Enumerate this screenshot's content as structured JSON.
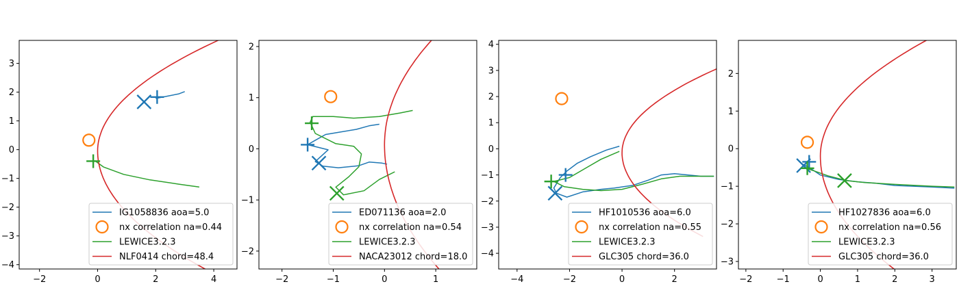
{
  "chart_data": [
    {
      "type": "line",
      "xlim": [
        -2.7,
        4.8
      ],
      "ylim": [
        -4.15,
        3.8
      ],
      "xticks": [
        -2,
        0,
        2,
        4
      ],
      "yticks": [
        -4,
        -3,
        -2,
        -1,
        0,
        1,
        2,
        3
      ],
      "legend_position": "lower-right",
      "series": [
        {
          "name": "IG1058836 aoa=5.0",
          "color": "#1f77b4",
          "x": [
            2.0,
            2.4,
            2.8,
            3.0
          ],
          "y": [
            1.78,
            1.86,
            1.94,
            2.02
          ]
        },
        {
          "name": "nx correlation na=0.44",
          "color": "#ff7f0e",
          "marker": "open-circle",
          "x": [
            -0.3
          ],
          "y": [
            0.33
          ]
        },
        {
          "name": "LEWICE3.2.3",
          "color": "#2ca02c",
          "x": [
            -0.1,
            0.2,
            0.9,
            1.8,
            2.8,
            3.5
          ],
          "y": [
            -0.38,
            -0.6,
            -0.86,
            -1.05,
            -1.2,
            -1.3
          ]
        },
        {
          "name": "NLF0414 chord=48.4",
          "color": "#d62728",
          "curve": "leading-edge",
          "x_le": 0.0,
          "y_le": -0.05,
          "a": 0.28,
          "b": 0.22,
          "x_end": 4.8
        }
      ],
      "markers": [
        {
          "series": "IG1058836 aoa=5.0",
          "shape": "plus",
          "x": 2.05,
          "y": 1.83
        },
        {
          "series": "IG1058836 aoa=5.0",
          "shape": "x",
          "x": 1.6,
          "y": 1.66
        },
        {
          "series": "LEWICE3.2.3",
          "shape": "plus",
          "x": -0.15,
          "y": -0.4
        }
      ]
    },
    {
      "type": "line",
      "xlim": [
        -2.45,
        1.8
      ],
      "ylim": [
        -2.35,
        2.12
      ],
      "xticks": [
        -2,
        -1,
        0,
        1
      ],
      "yticks": [
        -2,
        -1,
        0,
        1,
        2
      ],
      "legend_position": "lower-right",
      "series": [
        {
          "name": "ED071136 aoa=2.0",
          "color": "#1f77b4",
          "x": [
            -0.1,
            -0.3,
            -0.55,
            -0.85,
            -1.15,
            -1.38,
            -1.5,
            -1.1,
            -1.35,
            -1.2,
            -0.9,
            -0.5,
            -0.3,
            -0.05,
            0.05
          ],
          "y": [
            0.48,
            0.45,
            0.38,
            0.33,
            0.28,
            0.15,
            0.08,
            -0.02,
            -0.25,
            -0.34,
            -0.37,
            -0.33,
            -0.26,
            -0.28,
            -0.3
          ]
        },
        {
          "name": "nx correlation na=0.54",
          "color": "#ff7f0e",
          "marker": "open-circle",
          "x": [
            -1.05
          ],
          "y": [
            1.02
          ]
        },
        {
          "name": "LEWICE3.2.3",
          "color": "#2ca02c",
          "x": [
            0.55,
            0.3,
            -0.1,
            -0.6,
            -1.0,
            -1.4,
            -1.45,
            -1.35,
            -0.95,
            -0.6,
            -0.45,
            -0.5,
            -0.7,
            -0.95,
            -0.8,
            -0.4,
            -0.1,
            0.2
          ],
          "y": [
            0.75,
            0.7,
            0.63,
            0.6,
            0.63,
            0.63,
            0.52,
            0.3,
            0.1,
            0.05,
            -0.1,
            -0.35,
            -0.55,
            -0.75,
            -0.9,
            -0.82,
            -0.6,
            -0.45
          ]
        },
        {
          "name": "NACA23012 chord=18.0",
          "color": "#d62728",
          "curve": "leading-edge",
          "x_le": 0.0,
          "y_le": 0.08,
          "a": 0.22,
          "b": 0.18,
          "x_end": 1.8
        }
      ],
      "markers": [
        {
          "series": "ED071136 aoa=2.0",
          "shape": "plus",
          "x": -1.5,
          "y": 0.08
        },
        {
          "series": "ED071136 aoa=2.0",
          "shape": "x",
          "x": -1.28,
          "y": -0.28
        },
        {
          "series": "LEWICE3.2.3",
          "shape": "plus",
          "x": -1.42,
          "y": 0.5
        },
        {
          "series": "LEWICE3.2.3",
          "shape": "x",
          "x": -0.93,
          "y": -0.87
        }
      ]
    },
    {
      "type": "line",
      "xlim": [
        -4.7,
        3.6
      ],
      "ylim": [
        -4.6,
        4.15
      ],
      "xticks": [
        -4,
        -2,
        0,
        2
      ],
      "yticks": [
        -4,
        -3,
        -2,
        -1,
        0,
        1,
        2,
        3,
        4
      ],
      "legend_position": "lower-right",
      "series": [
        {
          "name": "HF1010536 aoa=6.0",
          "color": "#1f77b4",
          "x": [
            -0.1,
            -0.6,
            -1.2,
            -1.7,
            -2.1,
            -2.35,
            -2.6,
            -2.5,
            -2.1,
            -1.5,
            -0.8,
            -0.3,
            0.4,
            1.0,
            1.5,
            2.0,
            3.0,
            3.5
          ],
          "y": [
            0.1,
            -0.05,
            -0.3,
            -0.55,
            -0.85,
            -1.1,
            -1.5,
            -1.7,
            -1.85,
            -1.65,
            -1.55,
            -1.5,
            -1.4,
            -1.2,
            -1.0,
            -0.95,
            -1.05,
            -1.05
          ]
        },
        {
          "name": "nx correlation na=0.55",
          "color": "#ff7f0e",
          "marker": "open-circle",
          "x": [
            -2.3
          ],
          "y": [
            1.92
          ]
        },
        {
          "name": "LEWICE3.2.3",
          "color": "#2ca02c",
          "x": [
            -0.1,
            -0.8,
            -1.4,
            -2.0,
            -2.6,
            -2.2,
            -1.5,
            -0.8,
            0.0,
            0.8,
            1.5,
            2.2,
            3.0,
            3.5
          ],
          "y": [
            -0.1,
            -0.4,
            -0.75,
            -1.1,
            -1.25,
            -1.45,
            -1.55,
            -1.6,
            -1.55,
            -1.35,
            -1.15,
            -1.05,
            -1.05,
            -1.05
          ]
        },
        {
          "name": "GLC305 chord=36.0",
          "color": "#d62728",
          "curve": "leading-edge",
          "x_le": 0.0,
          "y_le": -0.15,
          "a": 0.35,
          "b": 0.3,
          "x_end": 3.6
        }
      ],
      "markers": [
        {
          "series": "HF1010536 aoa=6.0",
          "shape": "plus",
          "x": -2.15,
          "y": -1.0
        },
        {
          "series": "HF1010536 aoa=6.0",
          "shape": "x",
          "x": -2.55,
          "y": -1.7
        },
        {
          "series": "LEWICE3.2.3",
          "shape": "plus",
          "x": -2.7,
          "y": -1.25
        }
      ]
    },
    {
      "type": "line",
      "xlim": [
        -2.2,
        3.65
      ],
      "ylim": [
        -3.2,
        2.88
      ],
      "xticks": [
        -2,
        -1,
        0,
        1,
        2,
        3
      ],
      "yticks": [
        -3,
        -2,
        -1,
        0,
        1,
        2
      ],
      "legend_position": "lower-right",
      "series": [
        {
          "name": "HF1027836 aoa=6.0",
          "color": "#1f77b4",
          "x": [
            -0.5,
            -0.3,
            0.0,
            0.5,
            1.0,
            1.5,
            2.0,
            2.5,
            3.0,
            3.6
          ],
          "y": [
            -0.4,
            -0.5,
            -0.7,
            -0.82,
            -0.88,
            -0.92,
            -0.98,
            -1.0,
            -1.02,
            -1.05
          ]
        },
        {
          "name": "nx correlation na=0.56",
          "color": "#ff7f0e",
          "marker": "open-circle",
          "x": [
            -0.35
          ],
          "y": [
            0.17
          ]
        },
        {
          "name": "LEWICE3.2.3",
          "color": "#2ca02c",
          "x": [
            -0.45,
            -0.2,
            0.2,
            0.7,
            1.2,
            2.0,
            3.0,
            3.6
          ],
          "y": [
            -0.5,
            -0.58,
            -0.72,
            -0.85,
            -0.9,
            -0.95,
            -1.0,
            -1.02
          ]
        },
        {
          "name": "GLC305 chord=36.0",
          "color": "#d62728",
          "curve": "leading-edge",
          "x_le": 0.0,
          "y_le": -0.2,
          "a": 0.3,
          "b": 0.22,
          "x_end": 3.65
        }
      ],
      "markers": [
        {
          "series": "HF1027836 aoa=6.0",
          "shape": "plus",
          "x": -0.3,
          "y": -0.35
        },
        {
          "series": "HF1027836 aoa=6.0",
          "shape": "x",
          "x": -0.45,
          "y": -0.45
        },
        {
          "series": "LEWICE3.2.3",
          "shape": "plus",
          "x": -0.35,
          "y": -0.52
        },
        {
          "series": "LEWICE3.2.3",
          "shape": "x",
          "x": 0.65,
          "y": -0.85
        }
      ]
    }
  ]
}
